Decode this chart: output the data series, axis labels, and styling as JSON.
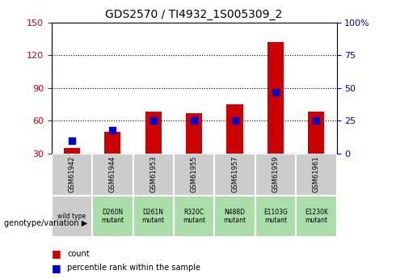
{
  "title": "GDS2570 / TI4932_1S005309_2",
  "samples": [
    "GSM61942",
    "GSM61944",
    "GSM61953",
    "GSM61955",
    "GSM61957",
    "GSM61959",
    "GSM61961"
  ],
  "genotype": [
    "wild type",
    "D260N\nmutant",
    "D261N\nmutant",
    "R320C\nmutant",
    "N488D\nmutant",
    "E1103G\nmutant",
    "E1230K\nmutant"
  ],
  "counts": [
    35,
    50,
    68,
    67,
    75,
    132,
    68
  ],
  "percentiles": [
    10,
    18,
    25,
    25,
    25,
    47,
    25
  ],
  "ylim_left": [
    30,
    150
  ],
  "ylim_right": [
    0,
    100
  ],
  "yticks_left": [
    30,
    60,
    90,
    120,
    150
  ],
  "yticks_right": [
    0,
    25,
    50,
    75,
    100
  ],
  "ytick_labels_right": [
    "0",
    "25",
    "50",
    "75",
    "100%"
  ],
  "bar_color": "#cc0000",
  "dot_color": "#0000cc",
  "grid_color": "#000000",
  "bg_color": "#ffffff",
  "sample_box_color": "#cccccc",
  "genotype_box_color": "#aaddaa",
  "wildtype_box_color": "#cccccc",
  "left_tick_color": "#cc0000",
  "right_tick_color": "#0000cc",
  "bar_width": 0.4,
  "legend_count_label": "count",
  "legend_pct_label": "percentile rank within the sample",
  "xlabel_label": "genotype/variation"
}
